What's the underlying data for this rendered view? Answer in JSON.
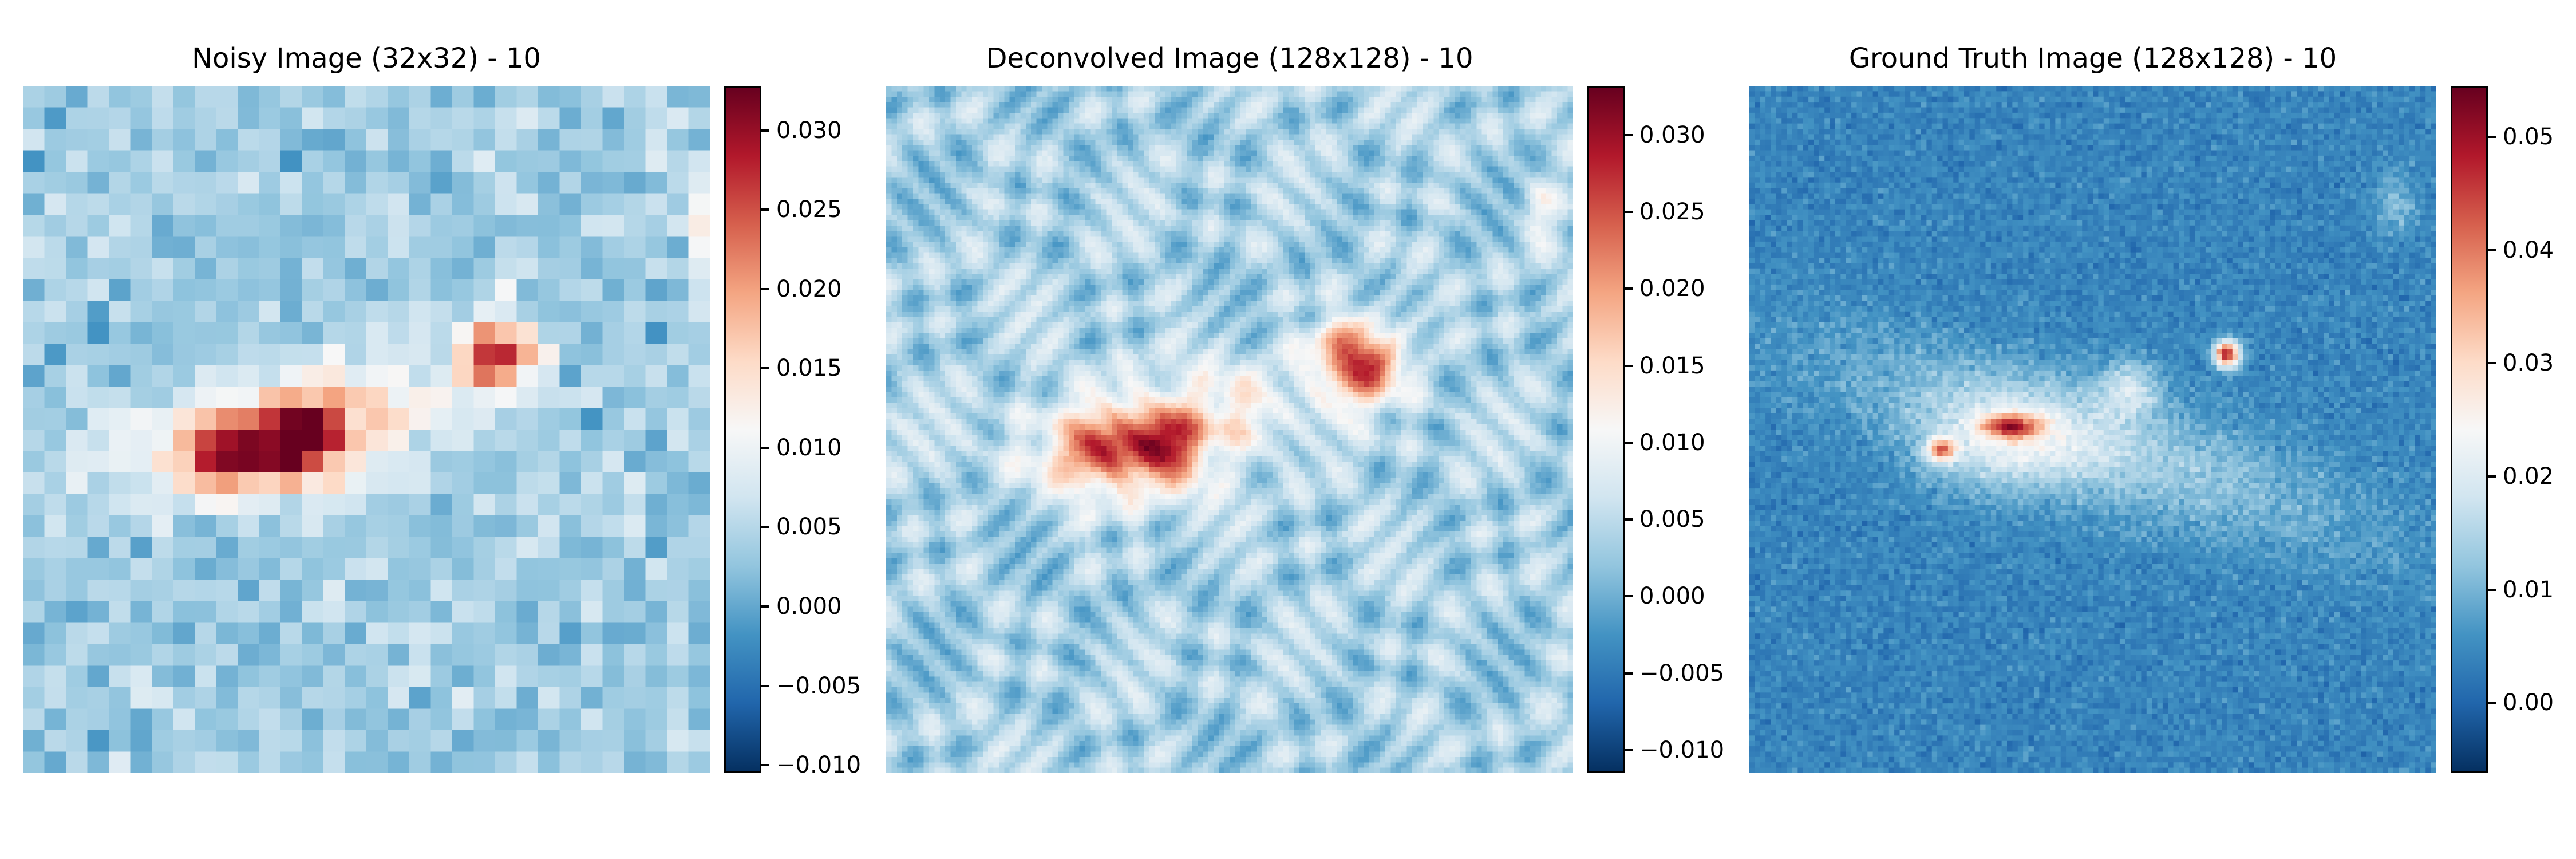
{
  "colormap": [
    "#053061",
    "#2166ac",
    "#4393c3",
    "#92c5de",
    "#d1e5f0",
    "#f7f7f7",
    "#fddbc7",
    "#f4a582",
    "#d6604d",
    "#b2182b",
    "#67001f"
  ],
  "chart_data": [
    {
      "type": "heatmap",
      "title": "Noisy Image (32x32) - 10",
      "grid": [
        32,
        32
      ],
      "pixelated": true,
      "vmin": -0.0105,
      "vmax": 0.0328,
      "background": 0.0035,
      "noise": 0.0045,
      "colorbar_ticks": [
        "−0.010",
        "−0.005",
        "0.000",
        "0.005",
        "0.010",
        "0.015",
        "0.020",
        "0.025",
        "0.030"
      ],
      "colorbar_tick_values": [
        -0.01,
        -0.005,
        0.0,
        0.005,
        0.01,
        0.015,
        0.02,
        0.025,
        0.03
      ],
      "features": [
        {
          "cx": 0.3,
          "cy": 0.535,
          "sx": 0.13,
          "sy": 0.05,
          "amp": 0.012
        },
        {
          "cx": 0.4,
          "cy": 0.5,
          "sx": 0.09,
          "sy": 0.05,
          "amp": 0.01
        },
        {
          "cx": 0.52,
          "cy": 0.45,
          "sx": 0.1,
          "sy": 0.05,
          "amp": 0.008
        },
        {
          "cx": 0.4,
          "cy": 0.52,
          "sx": 0.035,
          "sy": 0.035,
          "amp": 0.018
        },
        {
          "cx": 0.3,
          "cy": 0.54,
          "sx": 0.035,
          "sy": 0.035,
          "amp": 0.014
        },
        {
          "cx": 0.69,
          "cy": 0.39,
          "sx": 0.04,
          "sy": 0.04,
          "amp": 0.024
        },
        {
          "cx": 0.985,
          "cy": 0.2,
          "sx": 0.015,
          "sy": 0.06,
          "amp": 0.01
        }
      ]
    },
    {
      "type": "heatmap",
      "title": "Deconvolved Image (128x128) - 10",
      "grid": [
        128,
        128
      ],
      "pixelated": false,
      "vmin": -0.0115,
      "vmax": 0.0332,
      "background": 0.0035,
      "noise": 0.005,
      "blobby": true,
      "colorbar_ticks": [
        "−0.010",
        "−0.005",
        "0.000",
        "0.005",
        "0.010",
        "0.015",
        "0.020",
        "0.025",
        "0.030"
      ],
      "colorbar_tick_values": [
        -0.01,
        -0.005,
        0.0,
        0.005,
        0.01,
        0.015,
        0.02,
        0.025,
        0.03
      ],
      "features": [
        {
          "cx": 0.34,
          "cy": 0.535,
          "sx": 0.1,
          "sy": 0.05,
          "amp": 0.012
        },
        {
          "cx": 0.5,
          "cy": 0.47,
          "sx": 0.1,
          "sy": 0.045,
          "amp": 0.008
        },
        {
          "cx": 0.4,
          "cy": 0.52,
          "sx": 0.035,
          "sy": 0.035,
          "amp": 0.018
        },
        {
          "cx": 0.31,
          "cy": 0.53,
          "sx": 0.035,
          "sy": 0.035,
          "amp": 0.012
        },
        {
          "cx": 0.69,
          "cy": 0.4,
          "sx": 0.045,
          "sy": 0.04,
          "amp": 0.024
        },
        {
          "cx": 0.95,
          "cy": 0.18,
          "sx": 0.015,
          "sy": 0.03,
          "amp": 0.008
        }
      ]
    },
    {
      "type": "heatmap",
      "title": "Ground Truth Image (128x128) - 10",
      "grid": [
        128,
        128
      ],
      "pixelated": true,
      "vmin": -0.0062,
      "vmax": 0.0545,
      "background": 0.004,
      "noise": 0.0035,
      "colorbar_ticks": [
        "0.00",
        "0.01",
        "0.02",
        "0.03",
        "0.04",
        "0.05"
      ],
      "colorbar_tick_values": [
        0.0,
        0.01,
        0.02,
        0.03,
        0.04,
        0.05
      ],
      "features": [
        {
          "cx": 0.5,
          "cy": 0.52,
          "sx": 0.28,
          "sy": 0.06,
          "amp": 0.01,
          "angle": -0.3
        },
        {
          "cx": 0.38,
          "cy": 0.52,
          "sx": 0.09,
          "sy": 0.05,
          "amp": 0.012
        },
        {
          "cx": 0.28,
          "cy": 0.53,
          "sx": 0.015,
          "sy": 0.012,
          "amp": 0.03
        },
        {
          "cx": 0.38,
          "cy": 0.495,
          "sx": 0.03,
          "sy": 0.012,
          "amp": 0.028
        },
        {
          "cx": 0.555,
          "cy": 0.44,
          "sx": 0.03,
          "sy": 0.03,
          "amp": 0.012
        },
        {
          "cx": 0.695,
          "cy": 0.39,
          "sx": 0.013,
          "sy": 0.013,
          "amp": 0.046
        },
        {
          "cx": 0.94,
          "cy": 0.17,
          "sx": 0.02,
          "sy": 0.03,
          "amp": 0.008
        }
      ]
    }
  ]
}
